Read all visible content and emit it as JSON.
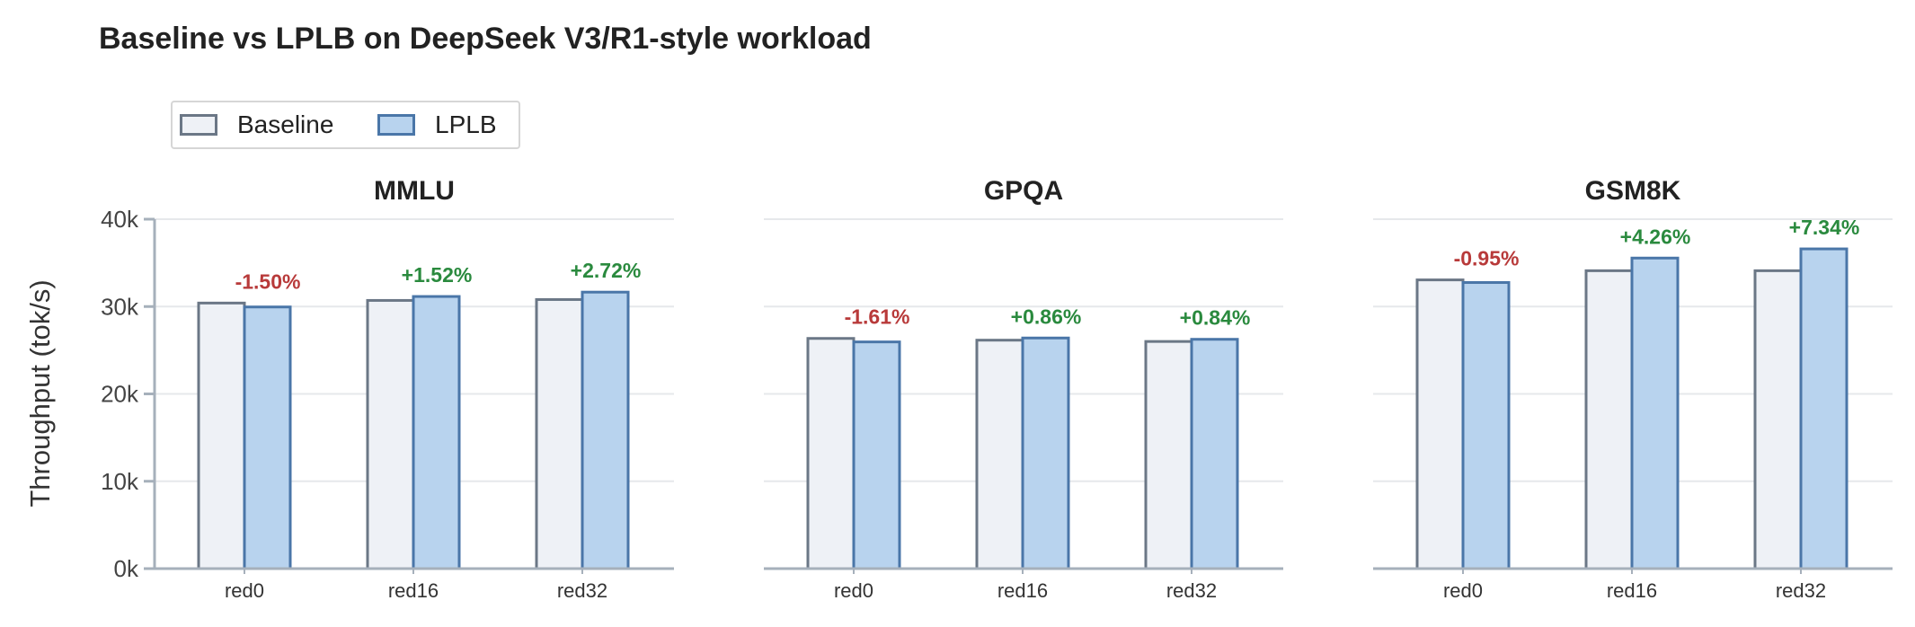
{
  "title": "Baseline vs LPLB on DeepSeek V3/R1-style workload",
  "legend": {
    "baseline_label": "Baseline",
    "lplb_label": "LPLB"
  },
  "colors": {
    "baseline_fill": "#eef1f6",
    "baseline_edge": "#6b7786",
    "lplb_fill": "#b8d3ee",
    "lplb_edge": "#4a76a8",
    "positive": "#2a8a3e",
    "negative": "#b83a3a",
    "grid": "#e6e8eb",
    "axis": "#a6b0bb"
  },
  "chart_data": {
    "type": "bar",
    "ylabel": "Throughput (tok/s)",
    "ylim": [
      0,
      40000
    ],
    "yticks": [
      0,
      10000,
      20000,
      30000,
      40000
    ],
    "ytick_labels": [
      "0k",
      "10k",
      "20k",
      "30k",
      "40k"
    ],
    "categories": [
      "red0",
      "red16",
      "red32"
    ],
    "series_names": [
      "Baseline",
      "LPLB"
    ],
    "grid": "horizontal",
    "legend_position": "top-left",
    "panels": [
      {
        "title": "MMLU",
        "baseline": [
          30400,
          30700,
          30800
        ],
        "lplb": [
          29950,
          31150,
          31650
        ],
        "annotations": [
          "-1.50%",
          "+1.52%",
          "+2.72%"
        ]
      },
      {
        "title": "GPQA",
        "baseline": [
          26350,
          26150,
          26000
        ],
        "lplb": [
          25950,
          26400,
          26250
        ],
        "annotations": [
          "-1.61%",
          "+0.86%",
          "+0.84%"
        ]
      },
      {
        "title": "GSM8K",
        "baseline": [
          33050,
          34100,
          34100
        ],
        "lplb": [
          32750,
          35550,
          36600
        ],
        "annotations": [
          "-0.95%",
          "+4.26%",
          "+7.34%"
        ]
      }
    ]
  }
}
